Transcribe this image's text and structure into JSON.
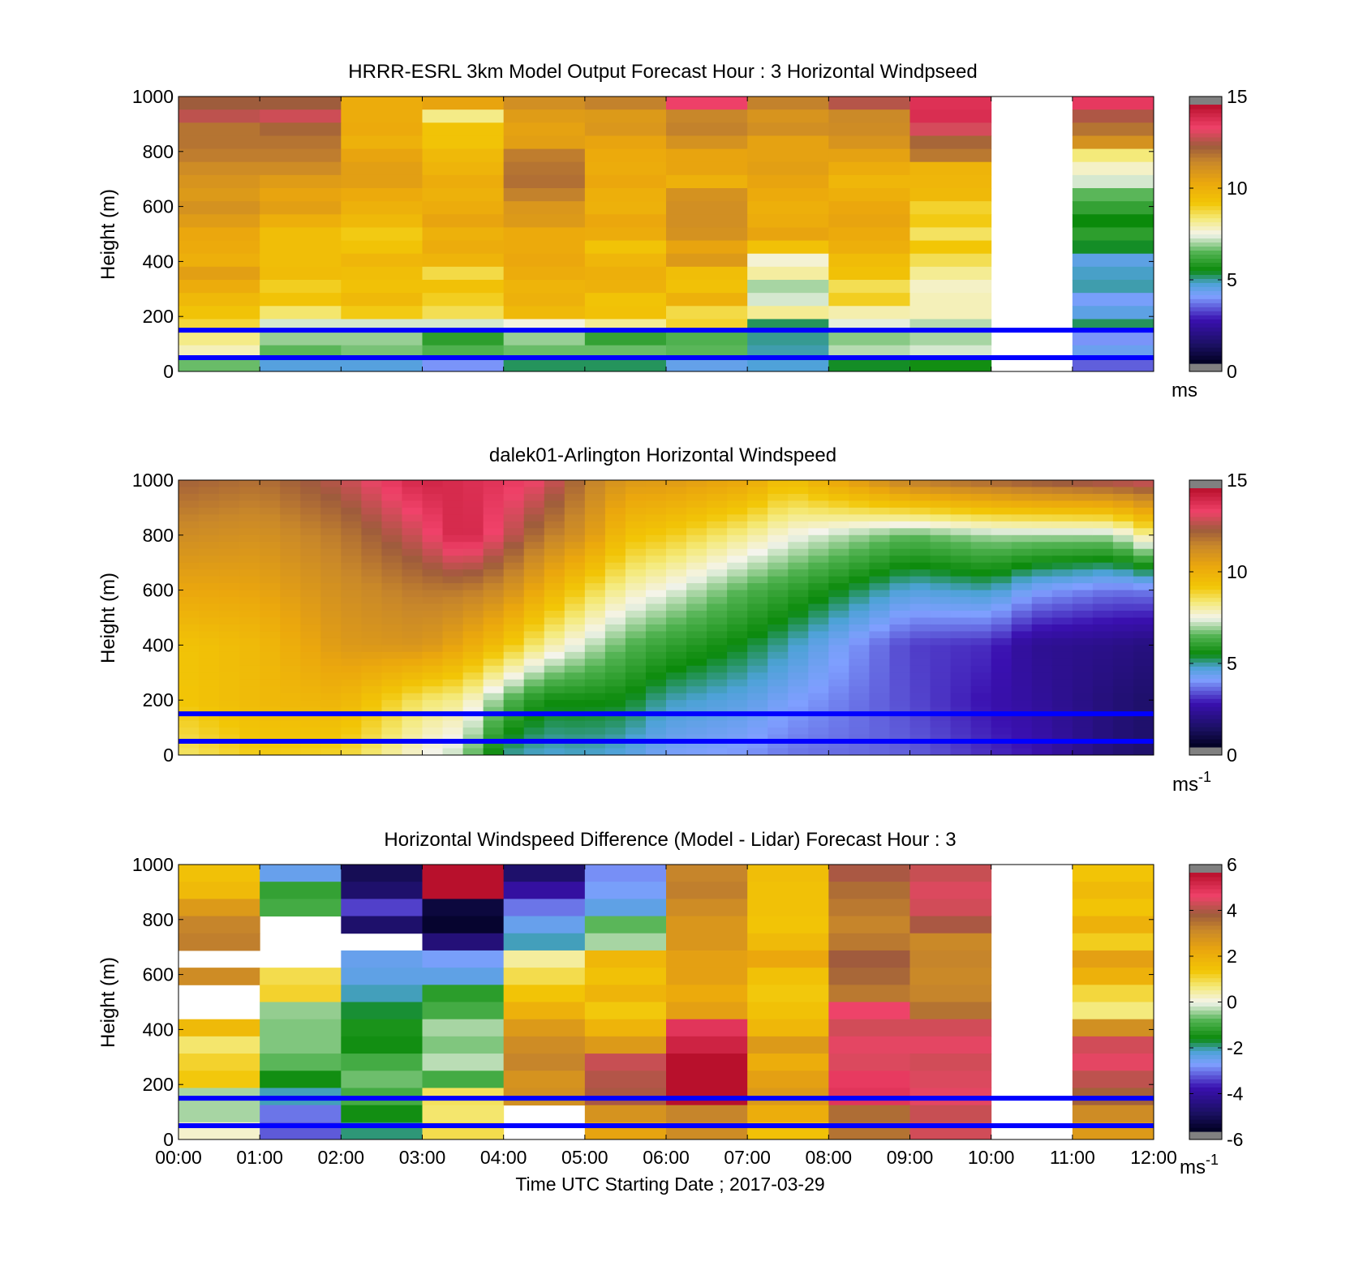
{
  "palette": [
    {
      "v": 0.0,
      "c": "#000020"
    },
    {
      "v": 0.07,
      "c": "#1a1060"
    },
    {
      "v": 0.17,
      "c": "#3a10b0"
    },
    {
      "v": 0.26,
      "c": "#7f9fff"
    },
    {
      "v": 0.31,
      "c": "#4ca2d6"
    },
    {
      "v": 0.36,
      "c": "#0b8a0b"
    },
    {
      "v": 0.43,
      "c": "#52b352"
    },
    {
      "v": 0.5,
      "c": "#f4f4ec"
    },
    {
      "v": 0.56,
      "c": "#f4ea7a"
    },
    {
      "v": 0.62,
      "c": "#f2c606"
    },
    {
      "v": 0.7,
      "c": "#eba70d"
    },
    {
      "v": 0.78,
      "c": "#c8872a"
    },
    {
      "v": 0.84,
      "c": "#9e5c3c"
    },
    {
      "v": 0.91,
      "c": "#f0426a"
    },
    {
      "v": 1.0,
      "c": "#b8102c"
    }
  ],
  "colorbar_end_color": "#808080",
  "line_color": "#0000ff",
  "chart_data": [
    {
      "type": "heatmap",
      "title": "HRRR-ESRL 3km Model Output   Forecast Hour : 3 Horizontal Windpseed",
      "ylabel": "Height (m)",
      "ylim": [
        0,
        1000
      ],
      "yticks": [
        "0",
        "200",
        "400",
        "600",
        "800",
        "1000"
      ],
      "colorbar": {
        "ticks": [
          "0",
          "5",
          "10",
          "15"
        ],
        "range": [
          0,
          15
        ],
        "unit": "ms"
      },
      "horizontal_lines_m": [
        150,
        50
      ],
      "x_label_visible": false,
      "columns": 12,
      "values": [
        [
          12.6,
          12.6,
          10.3,
          10.6,
          11.4,
          11.8,
          13.7,
          11.8,
          12.9,
          14.1,
          null,
          13.9
        ],
        [
          13.0,
          13.2,
          10.3,
          8.3,
          10.9,
          11.0,
          11.7,
          11.2,
          11.6,
          14.2,
          null,
          12.8
        ],
        [
          12.1,
          12.4,
          10.4,
          9.4,
          10.7,
          11.1,
          11.8,
          11.4,
          11.5,
          13.3,
          null,
          12.1
        ],
        [
          12.1,
          12.1,
          10.1,
          9.4,
          10.8,
          10.6,
          11.3,
          10.7,
          11.2,
          12.4,
          null,
          11.3
        ],
        [
          11.9,
          11.9,
          10.6,
          9.8,
          11.9,
          10.4,
          10.6,
          10.7,
          10.7,
          12.0,
          null,
          8.4
        ],
        [
          11.5,
          11.5,
          10.8,
          10.0,
          12.1,
          10.3,
          10.6,
          10.8,
          10.3,
          10.0,
          null,
          7.8
        ],
        [
          11.2,
          10.9,
          10.8,
          10.3,
          12.2,
          10.5,
          10.1,
          10.6,
          9.9,
          9.9,
          null,
          7.3
        ],
        [
          11.0,
          10.6,
          10.4,
          10.1,
          11.8,
          10.2,
          11.3,
          10.4,
          10.2,
          9.8,
          null,
          6.5
        ],
        [
          11.3,
          10.8,
          10.1,
          10.3,
          11.1,
          10.1,
          11.4,
          10.2,
          10.5,
          9.0,
          null,
          6.0
        ],
        [
          10.9,
          10.2,
          9.8,
          10.6,
          11.0,
          10.5,
          11.4,
          10.3,
          10.6,
          9.2,
          null,
          5.4
        ],
        [
          10.5,
          9.6,
          9.2,
          10.1,
          10.4,
          10.3,
          11.3,
          10.6,
          10.4,
          8.6,
          null,
          5.9
        ],
        [
          10.4,
          9.6,
          9.4,
          10.3,
          10.4,
          9.4,
          10.6,
          9.5,
          10.2,
          9.3,
          null,
          5.3
        ],
        [
          10.2,
          9.6,
          9.9,
          10.0,
          10.5,
          9.9,
          11.0,
          7.7,
          9.7,
          8.7,
          null,
          4.4
        ],
        [
          10.8,
          9.7,
          9.6,
          8.8,
          10.3,
          10.2,
          9.6,
          8.1,
          9.5,
          8.2,
          null,
          4.7
        ],
        [
          10.3,
          9.1,
          9.5,
          9.5,
          10.0,
          10.1,
          9.5,
          7.0,
          8.7,
          7.8,
          null,
          4.8
        ],
        [
          9.8,
          9.4,
          9.8,
          9.1,
          10.1,
          9.4,
          10.1,
          7.3,
          9.1,
          7.9,
          null,
          4.0
        ],
        [
          9.4,
          8.5,
          9.2,
          8.7,
          9.8,
          9.5,
          8.8,
          8.2,
          8.0,
          7.9,
          null,
          4.4
        ],
        [
          8.9,
          7.3,
          7.3,
          7.3,
          7.6,
          8.2,
          9.0,
          5.1,
          7.4,
          7.1,
          null,
          5.1
        ],
        [
          8.3,
          6.9,
          6.9,
          5.9,
          6.9,
          6.0,
          6.4,
          4.9,
          6.8,
          7.0,
          null,
          3.8
        ],
        [
          7.9,
          6.5,
          6.7,
          6.4,
          6.6,
          6.6,
          6.5,
          4.8,
          7.1,
          7.3,
          null,
          4.2
        ],
        [
          6.6,
          4.5,
          4.5,
          3.8,
          5.1,
          5.1,
          4.3,
          4.6,
          5.3,
          5.5,
          null,
          3.3
        ]
      ]
    },
    {
      "type": "heatmap",
      "title": "dalek01-Arlington  Horizontal Windspeed",
      "ylabel": "Height (m)",
      "ylim": [
        0,
        1000
      ],
      "yticks": [
        "0",
        "200",
        "400",
        "600",
        "800",
        "1000"
      ],
      "colorbar": {
        "ticks": [
          "0",
          "5",
          "10",
          "15"
        ],
        "range": [
          0,
          15
        ],
        "unit": "ms",
        "unit_superscript": "-1"
      },
      "horizontal_lines_m": [
        150,
        50
      ],
      "x_label_visible": false,
      "time_points": [
        0.0,
        0.25,
        0.5,
        0.75,
        1.0,
        1.25,
        1.5,
        1.75,
        2.0,
        2.25,
        2.5,
        2.75,
        3.0,
        3.25,
        3.5,
        3.75,
        4.0,
        4.25,
        4.5,
        4.75,
        5.0,
        5.25,
        5.5,
        5.75,
        6.0,
        6.25,
        6.5,
        6.75,
        7.0,
        7.25,
        7.5,
        7.75,
        8.0,
        8.25,
        8.5,
        8.75,
        9.0,
        9.25,
        9.5,
        9.75,
        10.0,
        10.25,
        10.5,
        10.75,
        11.0,
        11.25,
        11.5,
        11.75,
        12.0
      ],
      "keyframe_heights_m": [
        0,
        200,
        400,
        600,
        800,
        1000
      ],
      "keyframe_values": [
        [
          8.5,
          9.3,
          9.4,
          10.5,
          11.5,
          12.5
        ],
        [
          9.2,
          9.8,
          9.8,
          10.6,
          11.3,
          12.2
        ],
        [
          9.0,
          10.0,
          11.0,
          11.4,
          12.0,
          13.0
        ],
        [
          7.6,
          8.5,
          11.2,
          12.0,
          13.3,
          14.5
        ],
        [
          7.1,
          8.2,
          10.5,
          12.0,
          14.6,
          14.2
        ],
        [
          4.9,
          6.6,
          9.5,
          11.5,
          13.3,
          14.0
        ],
        [
          4.6,
          5.5,
          8.2,
          10.2,
          12.0,
          13.5
        ],
        [
          4.7,
          5.5,
          7.3,
          9.0,
          11.2,
          12.0
        ],
        [
          4.5,
          5.4,
          6.5,
          8.0,
          9.5,
          11.0
        ],
        [
          4.0,
          4.8,
          6.0,
          7.5,
          9.2,
          11.0
        ],
        [
          3.8,
          4.4,
          5.3,
          6.4,
          8.2,
          10.5
        ],
        [
          3.5,
          4.0,
          4.8,
          6.0,
          7.6,
          9.5
        ],
        [
          3.3,
          3.1,
          3.0,
          4.5,
          6.5,
          12.0
        ],
        [
          2.8,
          2.5,
          2.8,
          4.8,
          7.0,
          12.5
        ],
        [
          2.6,
          2.2,
          2.0,
          4.0,
          7.0,
          12.8
        ],
        [
          1.5,
          1.5,
          1.8,
          3.5,
          7.0,
          13.2
        ],
        [
          1.2,
          1.2,
          1.6,
          3.6,
          8.5,
          13.4
        ]
      ],
      "keyframe_times_h": [
        0.0,
        1.0,
        2.0,
        3.0,
        3.5,
        4.0,
        4.5,
        5.0,
        5.5,
        6.0,
        7.0,
        7.5,
        9.0,
        10.0,
        10.5,
        11.5,
        12.0
      ]
    },
    {
      "type": "heatmap",
      "title": "Horizontal Windspeed Difference (Model - Lidar) Forecast Hour : 3",
      "xlabel": "Time UTC  Starting Date ; 2017-03-29",
      "ylabel": "Height (m)",
      "ylim": [
        0,
        1000
      ],
      "yticks": [
        "0",
        "200",
        "400",
        "600",
        "800",
        "1000"
      ],
      "xticks": [
        "00:00",
        "01:00",
        "02:00",
        "03:00",
        "04:00",
        "05:00",
        "06:00",
        "07:00",
        "08:00",
        "09:00",
        "10:00",
        "11:00",
        "12:00"
      ],
      "colorbar": {
        "ticks": [
          "-6",
          "-4",
          "-2",
          "0",
          "2",
          "4",
          "6"
        ],
        "range": [
          -6,
          6
        ],
        "unit": "ms",
        "unit_superscript": "-1"
      },
      "horizontal_lines_m": [
        150,
        50
      ],
      "columns": 12,
      "values": [
        [
          1.6,
          -2.6,
          -5.3,
          6.0,
          -5.0,
          -3.0,
          3.4,
          1.7,
          4.2,
          4.5,
          null,
          1.5
        ],
        [
          1.8,
          -1.2,
          -5.0,
          6.0,
          -4.2,
          -2.8,
          3.5,
          1.6,
          3.8,
          4.7,
          null,
          1.8
        ],
        [
          2.8,
          -1.0,
          -3.6,
          -5.6,
          -3.2,
          -2.5,
          3.2,
          1.6,
          3.6,
          4.6,
          null,
          1.5
        ],
        [
          3.4,
          null,
          -5.0,
          -5.8,
          -2.6,
          -0.8,
          2.9,
          1.5,
          3.4,
          4.2,
          null,
          2.1
        ],
        [
          3.5,
          null,
          null,
          -4.8,
          -2.2,
          -0.4,
          2.9,
          1.8,
          3.6,
          3.3,
          null,
          1.3
        ],
        [
          null,
          null,
          -2.6,
          -2.8,
          0.5,
          1.9,
          2.6,
          2.4,
          4.1,
          3.4,
          null,
          2.6
        ],
        [
          3.2,
          1.0,
          -2.5,
          -2.5,
          1.0,
          1.6,
          2.6,
          1.6,
          3.9,
          3.3,
          null,
          2.1
        ],
        [
          null,
          1.2,
          -2.2,
          -1.3,
          1.5,
          2.0,
          2.3,
          1.4,
          3.6,
          3.4,
          null,
          1.1
        ],
        [
          null,
          -0.5,
          -1.8,
          -1.0,
          2.1,
          1.4,
          2.6,
          1.6,
          4.9,
          3.7,
          null,
          0.7
        ],
        [
          1.8,
          -0.6,
          -1.5,
          -0.4,
          2.8,
          2.0,
          5.2,
          1.9,
          4.6,
          4.6,
          null,
          3.1
        ],
        [
          0.8,
          -0.6,
          -1.6,
          -0.6,
          3.2,
          2.8,
          5.6,
          2.8,
          4.8,
          4.8,
          null,
          4.6
        ],
        [
          1.2,
          -0.8,
          -1.0,
          -0.3,
          3.4,
          4.5,
          6.0,
          2.2,
          4.7,
          4.6,
          null,
          4.8
        ],
        [
          1.4,
          -1.6,
          -0.7,
          -1.0,
          3.0,
          4.3,
          6.0,
          2.6,
          5.1,
          4.7,
          null,
          4.4
        ],
        [
          -0.4,
          -2.2,
          -1.0,
          0.9,
          3.1,
          4.2,
          6.0,
          2.8,
          5.2,
          4.8,
          null,
          4.0
        ],
        [
          -0.4,
          -3.2,
          -1.6,
          0.8,
          null,
          3.0,
          3.4,
          2.2,
          3.8,
          4.5,
          null,
          3.2
        ],
        [
          0.2,
          -3.4,
          -2.0,
          1.0,
          null,
          2.5,
          3.2,
          1.6,
          3.7,
          4.6,
          null,
          2.8
        ]
      ]
    }
  ]
}
